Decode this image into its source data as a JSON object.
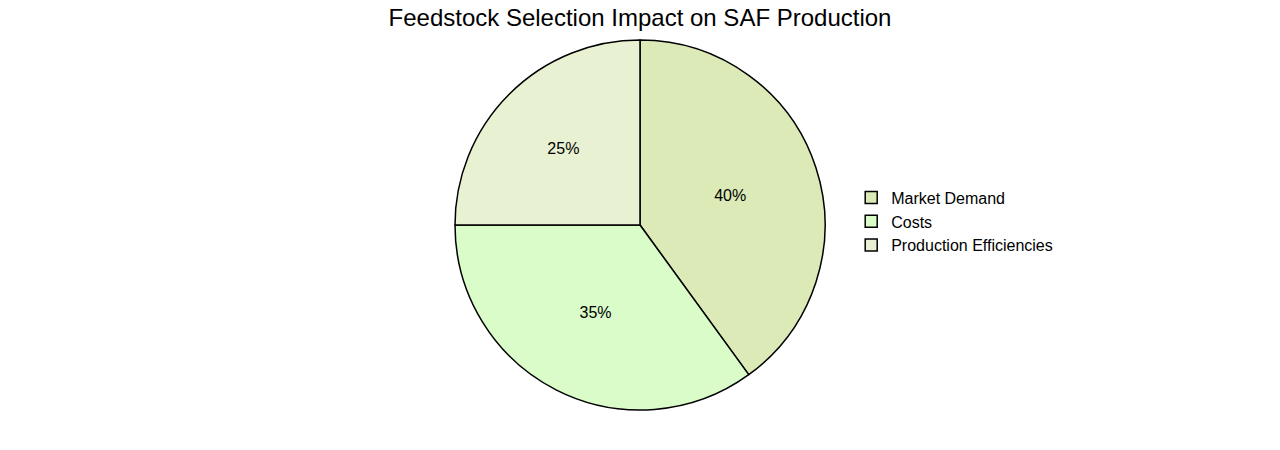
{
  "chart_data": {
    "type": "pie",
    "title": "Feedstock Selection Impact on SAF Production",
    "categories": [
      "Market Demand",
      "Costs",
      "Production Efficiencies"
    ],
    "values": [
      40,
      35,
      25
    ],
    "value_labels": [
      "40%",
      "35%",
      "25%"
    ],
    "colors": [
      "#dbeab6",
      "#d9fcc8",
      "#e8f2d2"
    ],
    "data_labels": true,
    "legend": "right"
  }
}
